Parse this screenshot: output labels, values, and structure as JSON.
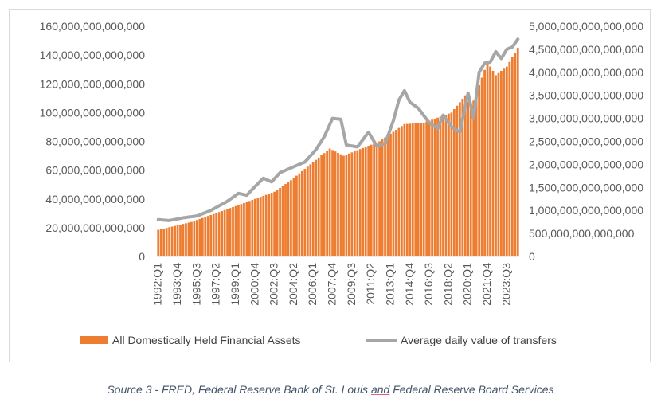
{
  "chart_data": {
    "type": "bar",
    "title": "",
    "xlabel": "",
    "ylabel_left": "",
    "ylabel_right": "",
    "categories_labeled": [
      "1992:Q1",
      "1993:Q4",
      "1995:Q3",
      "1997:Q2",
      "1999:Q1",
      "2000:Q4",
      "2002:Q3",
      "2004:Q2",
      "2006:Q1",
      "2007:Q4",
      "2009:Q3",
      "2011:Q2",
      "2013:Q1",
      "2014:Q4",
      "2016:Q3",
      "2018:Q2",
      "2020:Q1",
      "2021:Q4",
      "2023:Q3"
    ],
    "start_period": "1992:Q1",
    "quarters_count": 131,
    "left_axis": {
      "min": 0,
      "max": 160000000000000,
      "tick_labels": [
        "0",
        "20,000,000,000,000",
        "40,000,000,000,000",
        "60,000,000,000,000",
        "80,000,000,000,000",
        "100,000,000,000,000",
        "120,000,000,000,000",
        "140,000,000,000,000",
        "160,000,000,000,000"
      ]
    },
    "right_axis": {
      "min": 0,
      "max": 5000000000000000,
      "tick_labels": [
        "0",
        "500,000,000,000,000",
        "1,000,000,000,000,000",
        "1,500,000,000,000,000",
        "2,000,000,000,000,000",
        "2,500,000,000,000,000",
        "3,000,000,000,000,000",
        "3,500,000,000,000,000",
        "4,000,000,000,000,000",
        "4,500,000,000,000,000",
        "5,000,000,000,000,000"
      ]
    },
    "series": [
      {
        "name": "All Domestically Held Financial Assets",
        "type": "bar",
        "axis": "left",
        "color": "#ed7d31",
        "anchor_points": [
          [
            "1992:Q1",
            18500000000000.0
          ],
          [
            "1995:Q1",
            24000000000000.0
          ],
          [
            "1999:Q1",
            35000000000000.0
          ],
          [
            "2002:Q3",
            45000000000000.0
          ],
          [
            "2004:Q1",
            53000000000000.0
          ],
          [
            "2007:Q3",
            75000000000000.0
          ],
          [
            "2008:Q4",
            70000000000000.0
          ],
          [
            "2012:Q1",
            80000000000000.0
          ],
          [
            "2014:Q2",
            92000000000000.0
          ],
          [
            "2016:Q1",
            93000000000000.0
          ],
          [
            "2018:Q3",
            100000000000000.0
          ],
          [
            "2019:Q4",
            112000000000000.0
          ],
          [
            "2020:Q2",
            103000000000000.0
          ],
          [
            "2021:Q4",
            135000000000000.0
          ],
          [
            "2022:Q3",
            126000000000000.0
          ],
          [
            "2023:Q3",
            132000000000000.0
          ],
          [
            "2024:Q3",
            145000000000000.0
          ]
        ]
      },
      {
        "name": "Average daily value of transfers",
        "type": "line",
        "axis": "right",
        "color": "#a6a6a6",
        "anchor_points": [
          [
            "1992:Q1",
            800000000000000.0
          ],
          [
            "1993:Q1",
            780000000000000.0
          ],
          [
            "1994:Q2",
            840000000000000.0
          ],
          [
            "1995:Q3",
            880000000000000.0
          ],
          [
            "1996:Q4",
            1000000000000000.0
          ],
          [
            "1998:Q2",
            1200000000000000.0
          ],
          [
            "1999:Q2",
            1370000000000000.0
          ],
          [
            "2000:Q1",
            1330000000000000.0
          ],
          [
            "2000:Q4",
            1520000000000000.0
          ],
          [
            "2001:Q3",
            1700000000000000.0
          ],
          [
            "2002:Q2",
            1620000000000000.0
          ],
          [
            "2003:Q1",
            1820000000000000.0
          ],
          [
            "2004:Q2",
            1950000000000000.0
          ],
          [
            "2005:Q2",
            2050000000000000.0
          ],
          [
            "2006:Q2",
            2320000000000000.0
          ],
          [
            "2007:Q1",
            2600000000000000.0
          ],
          [
            "2007:Q4",
            3000000000000000.0
          ],
          [
            "2008:Q3",
            2980000000000000.0
          ],
          [
            "2009:Q1",
            2420000000000000.0
          ],
          [
            "2010:Q1",
            2380000000000000.0
          ],
          [
            "2011:Q1",
            2700000000000000.0
          ],
          [
            "2011:Q4",
            2400000000000000.0
          ],
          [
            "2012:Q3",
            2450000000000000.0
          ],
          [
            "2013:Q2",
            2950000000000000.0
          ],
          [
            "2013:Q4",
            3400000000000000.0
          ],
          [
            "2014:Q2",
            3600000000000000.0
          ],
          [
            "2014:Q4",
            3350000000000000.0
          ],
          [
            "2015:Q3",
            3220000000000000.0
          ],
          [
            "2016:Q3",
            2900000000000000.0
          ],
          [
            "2017:Q2",
            2780000000000000.0
          ],
          [
            "2017:Q4",
            3070000000000000.0
          ],
          [
            "2018:Q3",
            2820000000000000.0
          ],
          [
            "2019:Q2",
            2700000000000000.0
          ],
          [
            "2020:Q1",
            3550000000000000.0
          ],
          [
            "2020:Q3",
            3000000000000000.0
          ],
          [
            "2021:Q1",
            4000000000000000.0
          ],
          [
            "2021:Q3",
            4200000000000000.0
          ],
          [
            "2022:Q1",
            4220000000000000.0
          ],
          [
            "2022:Q3",
            4450000000000000.0
          ],
          [
            "2023:Q1",
            4300000000000000.0
          ],
          [
            "2023:Q3",
            4500000000000000.0
          ],
          [
            "2024:Q1",
            4550000000000000.0
          ],
          [
            "2024:Q3",
            4720000000000000.0
          ]
        ]
      }
    ],
    "legend_position": "bottom"
  },
  "legend": {
    "bar_label": "All Domestically Held Financial Assets",
    "line_label": "Average daily value of transfers"
  },
  "caption": {
    "prefix": "Source 3 - FRED, Federal Reserve Bank of St. Louis ",
    "and": "and",
    "suffix": " Federal Reserve Board Services"
  }
}
